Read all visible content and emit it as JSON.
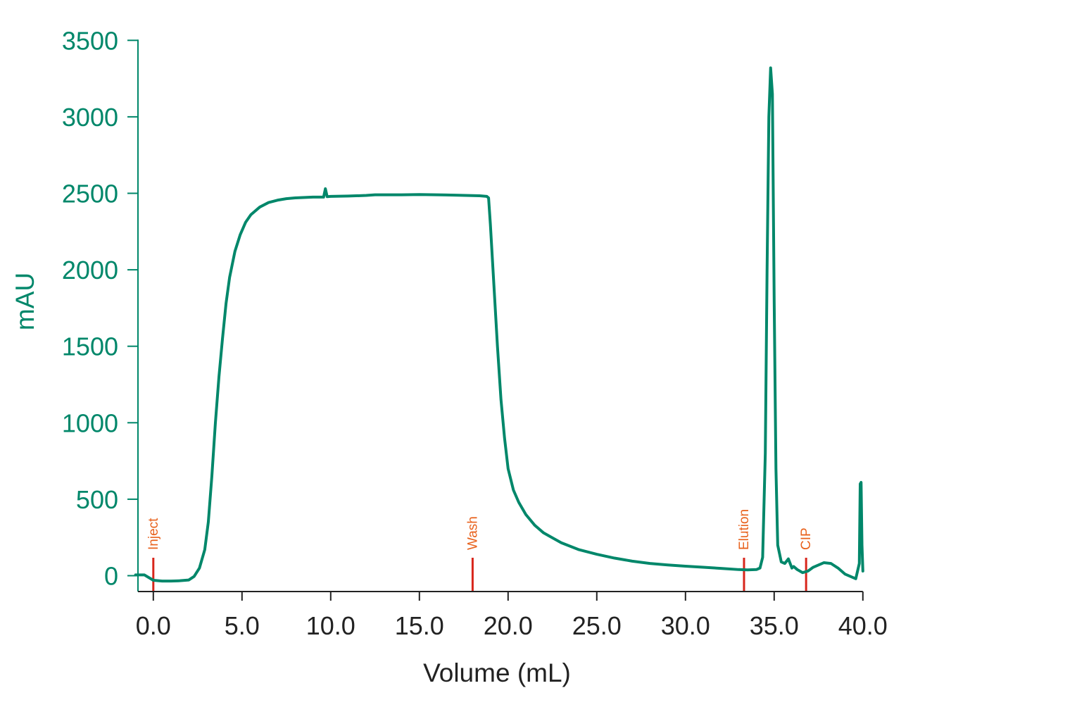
{
  "colors": {
    "trace": "#00876a",
    "y_axis": "#00876a",
    "x_axis": "#222222",
    "marker_line": "#d8261c",
    "marker_text": "#e8621d",
    "background": "#ffffff"
  },
  "chart_data": {
    "type": "line",
    "title": "",
    "xlabel": "Volume (mL)",
    "ylabel": "mAU",
    "xlim": [
      -1.0,
      40.0
    ],
    "ylim": [
      -100,
      3500
    ],
    "grid": false,
    "x_ticks": [
      0,
      5,
      10,
      15,
      20,
      25,
      30,
      35,
      40
    ],
    "x_tick_labels": [
      "0.0",
      "5.0",
      "10.0",
      "15.0",
      "20.0",
      "25.0",
      "30.0",
      "35.0",
      "40.0"
    ],
    "y_ticks": [
      0,
      500,
      1000,
      1500,
      2000,
      2500,
      3000,
      3500
    ],
    "y_tick_labels": [
      "0",
      "500",
      "1000",
      "1500",
      "2000",
      "2500",
      "3000",
      "3500"
    ],
    "markers": [
      {
        "label": "Inject",
        "x": 0.0
      },
      {
        "label": "Wash",
        "x": 18.0
      },
      {
        "label": "Elution",
        "x": 33.3
      },
      {
        "label": "CIP",
        "x": 36.8
      }
    ],
    "series": [
      {
        "x": [
          -1.0,
          -0.5,
          0.0,
          0.5,
          1.0,
          1.5,
          2.0,
          2.3,
          2.6,
          2.9,
          3.1,
          3.3,
          3.5,
          3.7,
          3.9,
          4.1,
          4.3,
          4.6,
          4.9,
          5.2,
          5.5,
          6.0,
          6.5,
          7.0,
          7.5,
          8.0,
          9.0,
          9.6,
          9.7,
          9.8,
          10.0,
          11.0,
          12.0,
          12.5,
          13.0,
          14.0,
          15.0,
          16.0,
          17.0,
          18.0,
          18.4,
          18.8,
          18.9,
          19.0,
          19.2,
          19.4,
          19.6,
          19.8,
          20.0,
          20.3,
          20.6,
          21.0,
          21.5,
          22.0,
          23.0,
          24.0,
          25.0,
          26.0,
          27.0,
          28.0,
          29.0,
          30.0,
          31.0,
          32.0,
          33.0,
          33.5,
          34.0,
          34.2,
          34.35,
          34.5,
          34.6,
          34.7,
          34.8,
          34.9,
          35.0,
          35.1,
          35.2,
          35.4,
          35.6,
          35.8,
          36.0,
          36.1,
          36.3,
          36.6,
          36.9,
          37.2,
          37.5,
          37.8,
          38.2,
          38.6,
          39.0,
          39.3,
          39.6,
          39.8,
          39.85,
          39.9,
          39.95,
          40.0
        ],
        "values": [
          5,
          5,
          -30,
          -35,
          -35,
          -33,
          -28,
          -5,
          50,
          170,
          350,
          650,
          1000,
          1300,
          1550,
          1780,
          1950,
          2120,
          2230,
          2310,
          2360,
          2410,
          2440,
          2455,
          2465,
          2470,
          2475,
          2475,
          2530,
          2478,
          2480,
          2482,
          2486,
          2490,
          2490,
          2490,
          2492,
          2490,
          2488,
          2485,
          2484,
          2480,
          2470,
          2300,
          1900,
          1500,
          1150,
          900,
          700,
          560,
          480,
          400,
          330,
          280,
          215,
          170,
          140,
          115,
          95,
          80,
          70,
          62,
          55,
          48,
          40,
          38,
          40,
          50,
          120,
          800,
          2000,
          3000,
          3320,
          3150,
          1800,
          700,
          200,
          90,
          80,
          110,
          50,
          60,
          40,
          20,
          30,
          55,
          70,
          85,
          80,
          50,
          10,
          -5,
          -20,
          80,
          600,
          610,
          200,
          30
        ]
      }
    ]
  }
}
